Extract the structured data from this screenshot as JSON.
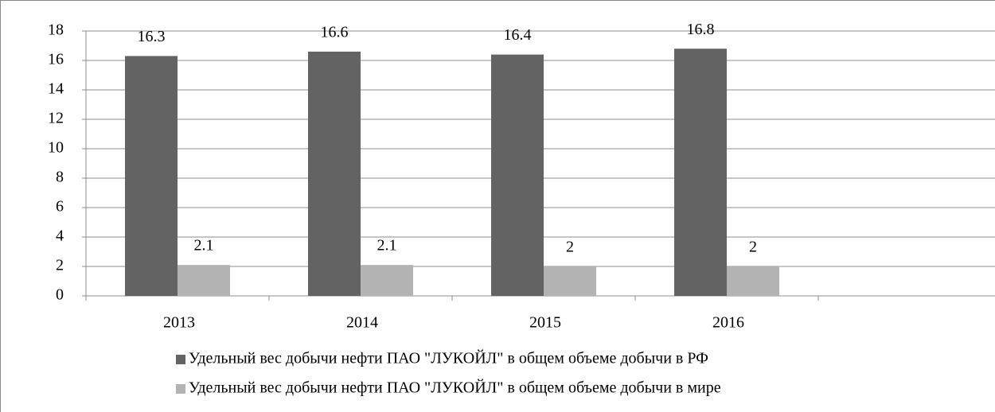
{
  "chart_data": {
    "type": "bar",
    "categories": [
      "2013",
      "2014",
      "2015",
      "2016",
      null
    ],
    "series": [
      {
        "name": "Удельный вес добычи нефти ПАО \"ЛУКОЙЛ\" в общем объеме добычи в РФ",
        "color": "#636363",
        "values": [
          16.3,
          16.6,
          16.4,
          16.8,
          null
        ]
      },
      {
        "name": "Удельный вес добычи нефти ПАО \"ЛУКОЙЛ\" в общем объеме добычи в мире",
        "color": "#b3b3b3",
        "values": [
          2.1,
          2.1,
          2,
          2,
          null
        ]
      }
    ],
    "ylim": [
      0,
      18
    ],
    "yticks": [
      0,
      2,
      4,
      6,
      8,
      10,
      12,
      14,
      16,
      18
    ],
    "grid": true,
    "legend": "bottom"
  }
}
